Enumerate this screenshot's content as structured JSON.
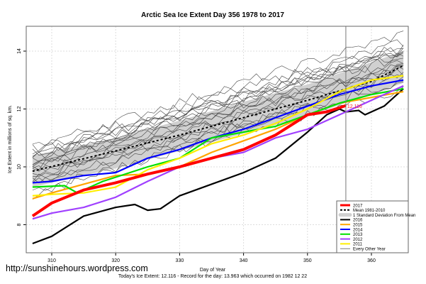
{
  "chart_data": {
    "type": "line",
    "title": "Arctic Sea Ice Extent Day 356 1978 to 2017",
    "xlabel": "Day of Year",
    "ylabel": "Ice Extent in millions of sq. km.",
    "xlim": [
      306,
      366
    ],
    "ylim": [
      7.0,
      15.2
    ],
    "xticks": [
      310,
      320,
      330,
      340,
      350,
      360
    ],
    "yticks": [
      8,
      10,
      12,
      14
    ],
    "grid": true,
    "legend_position": "bottom-right",
    "current_day": 356,
    "current_value_label": "12.116",
    "footer": "Today's Ice Extent: 12.116 - Record for the day: 13.963 which occurred on 1982 12 22",
    "watermark": "http://sunshinehours.wordpress.com",
    "sd_band": {
      "name": "1 Standard Deviation From Mean",
      "points": [
        [
          307,
          9.3,
          10.4
        ],
        [
          320,
          9.95,
          11.0
        ],
        [
          330,
          10.55,
          11.6
        ],
        [
          340,
          11.15,
          12.25
        ],
        [
          350,
          11.75,
          12.85
        ],
        [
          365,
          12.9,
          14.0
        ]
      ]
    },
    "other_years": {
      "name": "Every Other Year",
      "lines": [
        [
          9.2,
          12.7
        ],
        [
          9.4,
          13.0
        ],
        [
          9.5,
          13.1
        ],
        [
          9.6,
          13.3
        ],
        [
          9.7,
          13.4
        ],
        [
          9.8,
          13.5
        ],
        [
          9.9,
          13.6
        ],
        [
          10.0,
          13.7
        ],
        [
          10.1,
          13.8
        ],
        [
          10.2,
          13.9
        ],
        [
          10.3,
          14.0
        ],
        [
          10.35,
          14.1
        ],
        [
          10.45,
          14.2
        ],
        [
          10.5,
          13.95
        ],
        [
          10.6,
          14.3
        ],
        [
          10.7,
          14.6
        ],
        [
          9.0,
          13.2
        ],
        [
          10.05,
          13.45
        ],
        [
          9.65,
          12.9
        ],
        [
          10.25,
          14.05
        ]
      ]
    },
    "series": [
      {
        "name": "Mean 1981-2010",
        "color": "#000000",
        "style": "dashed",
        "points": [
          [
            307,
            9.85
          ],
          [
            320,
            10.55
          ],
          [
            330,
            11.1
          ],
          [
            340,
            11.7
          ],
          [
            350,
            12.3
          ],
          [
            360,
            12.95
          ],
          [
            365,
            13.5
          ]
        ]
      },
      {
        "name": "2016",
        "color": "#000000",
        "points": [
          [
            307,
            7.35
          ],
          [
            310,
            7.6
          ],
          [
            315,
            8.3
          ],
          [
            320,
            8.6
          ],
          [
            323,
            8.7
          ],
          [
            325,
            8.5
          ],
          [
            327,
            8.55
          ],
          [
            330,
            9.0
          ],
          [
            335,
            9.4
          ],
          [
            340,
            9.8
          ],
          [
            345,
            10.3
          ],
          [
            350,
            11.2
          ],
          [
            353,
            11.8
          ],
          [
            355,
            12.0
          ],
          [
            356,
            11.9
          ],
          [
            358,
            11.95
          ],
          [
            359,
            11.8
          ],
          [
            362,
            12.1
          ],
          [
            365,
            12.7
          ]
        ]
      },
      {
        "name": "2015",
        "color": "#ffa500",
        "points": [
          [
            307,
            8.9
          ],
          [
            310,
            9.1
          ],
          [
            315,
            9.4
          ],
          [
            320,
            9.7
          ],
          [
            325,
            9.75
          ],
          [
            330,
            10.0
          ],
          [
            335,
            10.5
          ],
          [
            340,
            10.9
          ],
          [
            345,
            11.3
          ],
          [
            350,
            11.8
          ],
          [
            355,
            12.2
          ],
          [
            360,
            12.4
          ],
          [
            365,
            12.6
          ]
        ]
      },
      {
        "name": "2014",
        "color": "#0000ff",
        "points": [
          [
            307,
            9.45
          ],
          [
            310,
            9.5
          ],
          [
            315,
            9.7
          ],
          [
            320,
            9.8
          ],
          [
            325,
            10.3
          ],
          [
            330,
            10.6
          ],
          [
            335,
            11.0
          ],
          [
            340,
            11.3
          ],
          [
            345,
            11.7
          ],
          [
            350,
            12.1
          ],
          [
            355,
            12.5
          ],
          [
            360,
            12.8
          ],
          [
            365,
            13.0
          ]
        ]
      },
      {
        "name": "2013",
        "color": "#00e000",
        "points": [
          [
            307,
            9.3
          ],
          [
            312,
            9.35
          ],
          [
            314,
            9.1
          ],
          [
            318,
            9.5
          ],
          [
            325,
            10.0
          ],
          [
            330,
            10.3
          ],
          [
            335,
            11.0
          ],
          [
            340,
            11.2
          ],
          [
            345,
            11.4
          ],
          [
            350,
            11.8
          ],
          [
            355,
            12.2
          ],
          [
            360,
            12.5
          ],
          [
            365,
            12.7
          ]
        ]
      },
      {
        "name": "2012",
        "color": "#a040ff",
        "points": [
          [
            307,
            8.2
          ],
          [
            310,
            8.4
          ],
          [
            315,
            8.6
          ],
          [
            320,
            8.95
          ],
          [
            325,
            9.5
          ],
          [
            330,
            10.0
          ],
          [
            335,
            10.3
          ],
          [
            340,
            10.5
          ],
          [
            345,
            11.0
          ],
          [
            350,
            11.3
          ],
          [
            355,
            11.8
          ],
          [
            360,
            12.3
          ],
          [
            365,
            12.8
          ]
        ]
      },
      {
        "name": "2011",
        "color": "#ffee00",
        "points": [
          [
            307,
            9.0
          ],
          [
            310,
            9.05
          ],
          [
            315,
            9.1
          ],
          [
            320,
            9.3
          ],
          [
            325,
            9.9
          ],
          [
            330,
            10.3
          ],
          [
            335,
            10.8
          ],
          [
            340,
            11.1
          ],
          [
            345,
            11.5
          ],
          [
            350,
            12.0
          ],
          [
            355,
            12.6
          ],
          [
            360,
            13.0
          ],
          [
            365,
            13.15
          ]
        ]
      },
      {
        "name": "2017",
        "color": "#ff0000",
        "width": 4,
        "points": [
          [
            307,
            8.3
          ],
          [
            310,
            8.75
          ],
          [
            315,
            9.2
          ],
          [
            320,
            9.45
          ],
          [
            325,
            9.75
          ],
          [
            330,
            10.0
          ],
          [
            335,
            10.3
          ],
          [
            340,
            10.6
          ],
          [
            345,
            11.1
          ],
          [
            350,
            11.8
          ],
          [
            353,
            11.9
          ],
          [
            356,
            12.116
          ]
        ]
      }
    ],
    "legend": [
      "2017",
      "Mean 1981-2010",
      "1 Standard Deviation From Mean",
      "2016",
      "2015",
      "2014",
      "2013",
      "2012",
      "2011",
      "Every Other Year"
    ]
  }
}
